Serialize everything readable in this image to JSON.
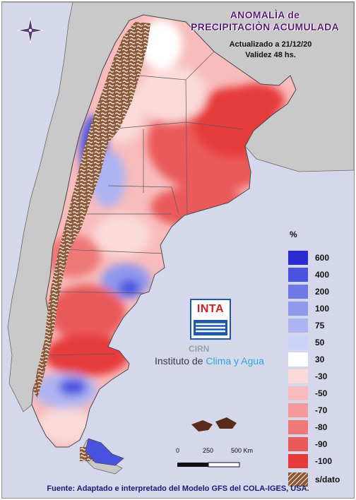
{
  "title": {
    "line1": "ANOMALÌA de",
    "line2": "PRECIPITACIÒN ACUMULADA"
  },
  "updated": "Actualizado a 21/12/20",
  "validity": "Validez 48 hs.",
  "legend": {
    "unit": "%",
    "entries": [
      {
        "label": "600",
        "color": "#2a2ad0"
      },
      {
        "label": "400",
        "color": "#4a52e0"
      },
      {
        "label": "200",
        "color": "#6e78e6"
      },
      {
        "label": "100",
        "color": "#8e98ec"
      },
      {
        "label": "75",
        "color": "#adb4f2"
      },
      {
        "label": "50",
        "color": "#cdd2f8"
      },
      {
        "label": "30",
        "color": "#ffffff"
      },
      {
        "label": "-30",
        "color": "#fbdada"
      },
      {
        "label": "-50",
        "color": "#f8bcbc"
      },
      {
        "label": "-70",
        "color": "#f49a9a"
      },
      {
        "label": "-80",
        "color": "#ef7878"
      },
      {
        "label": "-90",
        "color": "#ea5a5a"
      },
      {
        "label": "-100",
        "color": "#e63a3a"
      }
    ],
    "no_data_label": "s/dato",
    "no_data_color": "#8b5a3c"
  },
  "logo": {
    "inta": "INTA",
    "cirn": "CIRN",
    "institute_prefix": "Instituto de ",
    "institute_accent": "Clima y Agua"
  },
  "scale": {
    "labels": [
      "0",
      "250",
      "500 Km"
    ]
  },
  "source": "Fuente: Adaptado e interpretado del Modelo GFS del COLA-IGES, USA.",
  "colors": {
    "ocean": "#d4d8ea",
    "neighbors": "#c9c9c9",
    "title": "#5a1a78"
  }
}
